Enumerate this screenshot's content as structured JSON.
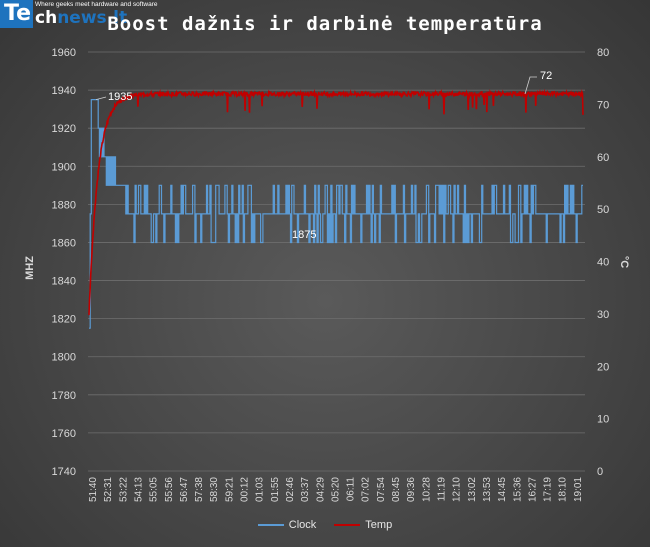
{
  "logo": {
    "mark": "Te",
    "name_prefix": "ch",
    "name_accent": "news.lt",
    "tagline": "Where geeks meet hardware and software"
  },
  "colors": {
    "clock": "#5b9bd5",
    "temp": "#c00000",
    "grid": "#6e6e6e",
    "text": "#d9d9d9"
  },
  "chart_data": {
    "type": "line",
    "title": "Boost dažnis ir darbinė temperatūra",
    "ylabel": "MHZ",
    "y2label": "°C",
    "ylim": [
      1740,
      1960
    ],
    "y2lim": [
      0,
      80
    ],
    "yticks": [
      1740,
      1760,
      1780,
      1800,
      1820,
      1840,
      1860,
      1880,
      1900,
      1920,
      1940,
      1960
    ],
    "y2ticks": [
      0,
      10,
      20,
      30,
      40,
      50,
      60,
      70,
      80
    ],
    "x_tick_labels": [
      "51:40",
      "52:31",
      "53:22",
      "54:13",
      "55:05",
      "55:56",
      "56:47",
      "57:38",
      "58:30",
      "59:21",
      "00:12",
      "01:03",
      "01:55",
      "02:46",
      "03:37",
      "04:29",
      "05:20",
      "06:11",
      "07:02",
      "07:54",
      "08:45",
      "09:36",
      "10:28",
      "11:19",
      "12:10",
      "13:02",
      "13:53",
      "14:45",
      "15:36",
      "16:27",
      "17:19",
      "18:10",
      "19:01"
    ],
    "legend": {
      "position": "bottom"
    },
    "series": [
      {
        "name": "Clock",
        "axis": "left",
        "start": 1815,
        "peak": 1935,
        "steady_levels": [
          1860,
          1875,
          1890
        ],
        "steady_typical": 1875
      },
      {
        "name": "Temp",
        "axis": "right",
        "start": 30,
        "plateau": 72,
        "end": 72
      }
    ],
    "annotations": [
      {
        "text": "1935",
        "series": "Clock"
      },
      {
        "text": "1875",
        "series": "Clock"
      },
      {
        "text": "72",
        "series": "Temp"
      }
    ]
  }
}
